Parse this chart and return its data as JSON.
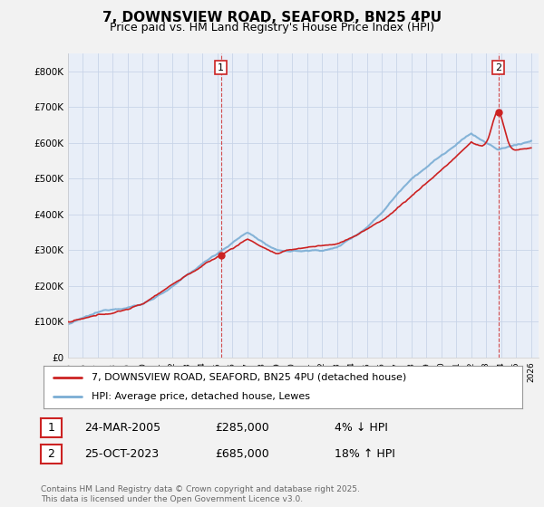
{
  "title": "7, DOWNSVIEW ROAD, SEAFORD, BN25 4PU",
  "subtitle": "Price paid vs. HM Land Registry's House Price Index (HPI)",
  "ylabel_ticks": [
    "£0",
    "£100K",
    "£200K",
    "£300K",
    "£400K",
    "£500K",
    "£600K",
    "£700K",
    "£800K"
  ],
  "ytick_values": [
    0,
    100000,
    200000,
    300000,
    400000,
    500000,
    600000,
    700000,
    800000
  ],
  "ylim": [
    0,
    850000
  ],
  "xlim_start": 1995,
  "xlim_end": 2026.5,
  "sale1_x": 2005.23,
  "sale1_y": 285000,
  "sale1_label": "1",
  "sale2_x": 2023.81,
  "sale2_y": 685000,
  "sale2_label": "2",
  "legend_line1": "7, DOWNSVIEW ROAD, SEAFORD, BN25 4PU (detached house)",
  "legend_line2": "HPI: Average price, detached house, Lewes",
  "annotation1_date": "24-MAR-2005",
  "annotation1_price": "£285,000",
  "annotation1_hpi": "4% ↓ HPI",
  "annotation2_date": "25-OCT-2023",
  "annotation2_price": "£685,000",
  "annotation2_hpi": "18% ↑ HPI",
  "footer": "Contains HM Land Registry data © Crown copyright and database right 2025.\nThis data is licensed under the Open Government Licence v3.0.",
  "hpi_color": "#7aadd4",
  "price_color": "#cc2222",
  "background_color": "#f2f2f2",
  "plot_bg_color": "#e8eef8",
  "grid_color": "#c8d4e8",
  "title_fontsize": 11,
  "subtitle_fontsize": 9
}
